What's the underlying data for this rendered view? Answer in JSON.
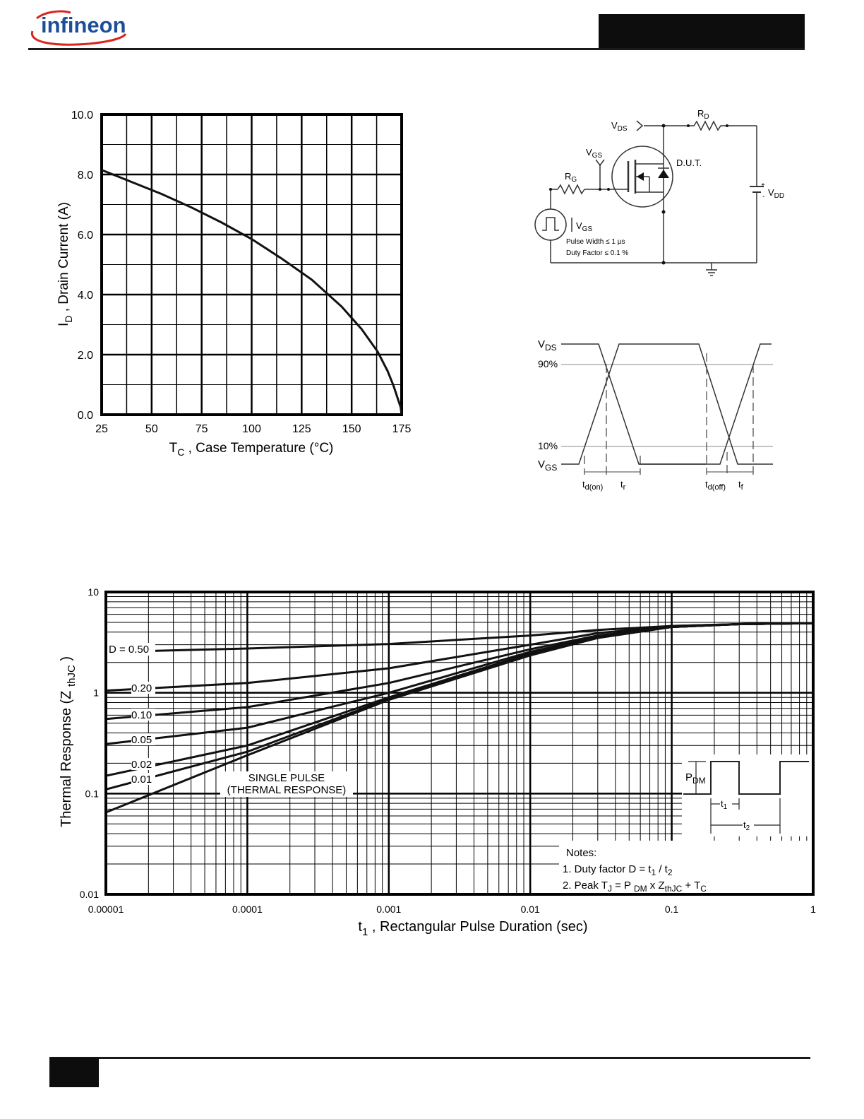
{
  "header": {
    "brand": "infineon"
  },
  "colors": {
    "brand": "#1d4e9a",
    "swoosh": "#d8261f",
    "ink": "#111111"
  },
  "chart_data": [
    {
      "type": "line",
      "xlabel_main": "T",
      "xlabel_sub": "C",
      "xlabel_rest": " , Case Temperature  (",
      "xlabel_unit": "°C)",
      "ylabel_main": "I",
      "ylabel_sub": "D",
      "ylabel_rest": " , Drain Current (A)",
      "xlim": [
        25,
        175
      ],
      "ylim": [
        0,
        10
      ],
      "x_ticks": [
        25,
        50,
        75,
        100,
        125,
        150,
        175
      ],
      "x_tick_labels": [
        "25",
        "50",
        "75",
        "100",
        "125",
        "150",
        "175"
      ],
      "y_ticks": [
        0,
        2,
        4,
        6,
        8,
        10
      ],
      "y_tick_labels": [
        "0.0",
        "2.0",
        "4.0",
        "6.0",
        "8.0",
        "10.0"
      ],
      "grid": true,
      "series": [
        {
          "x": [
            25,
            40,
            55,
            70,
            85,
            100,
            115,
            130,
            145,
            155,
            163,
            168,
            171,
            173,
            174.5,
            175
          ],
          "y": [
            8.15,
            7.75,
            7.35,
            6.9,
            6.4,
            5.85,
            5.2,
            4.5,
            3.6,
            2.85,
            2.1,
            1.45,
            0.95,
            0.55,
            0.25,
            0.0
          ]
        }
      ]
    },
    {
      "type": "line",
      "x_scale": "log",
      "y_scale": "log",
      "xlabel_main": "t",
      "xlabel_sub": "1",
      "xlabel_rest": " , Rectangular Pulse Duration (sec)",
      "ylabel_main": "Thermal Response (Z ",
      "ylabel_sub": "thJC",
      "ylabel_rest": " )",
      "xlim": [
        1e-05,
        1
      ],
      "ylim": [
        0.01,
        10
      ],
      "x_tick_labels": [
        "0.00001",
        "0.0001",
        "0.001",
        "0.01",
        "0.1",
        "1"
      ],
      "y_tick_labels": [
        "0.01",
        "0.1",
        "1",
        "10"
      ],
      "grid": true,
      "series": [
        {
          "name": "D = 0.50",
          "x": [
            2e-05,
            0.0001,
            0.001,
            0.01,
            0.03,
            0.1,
            0.3,
            1
          ],
          "y": [
            2.6,
            2.75,
            3.05,
            3.7,
            4.2,
            4.6,
            4.8,
            4.9
          ]
        },
        {
          "name": "0.20",
          "x": [
            1e-05,
            0.0001,
            0.001,
            0.01,
            0.03,
            0.1,
            0.3,
            1
          ],
          "y": [
            1.05,
            1.25,
            1.75,
            3.0,
            3.9,
            4.6,
            4.8,
            4.9
          ]
        },
        {
          "name": "0.10",
          "x": [
            1e-05,
            0.0001,
            0.001,
            0.01,
            0.03,
            0.1,
            0.3,
            1
          ],
          "y": [
            0.55,
            0.72,
            1.25,
            2.7,
            3.7,
            4.5,
            4.8,
            4.9
          ]
        },
        {
          "name": "0.05",
          "x": [
            1e-05,
            0.0001,
            0.001,
            0.01,
            0.03,
            0.1,
            0.3,
            1
          ],
          "y": [
            0.31,
            0.45,
            1.0,
            2.55,
            3.6,
            4.5,
            4.8,
            4.9
          ]
        },
        {
          "name": "0.02",
          "x": [
            1e-05,
            0.0001,
            0.001,
            0.01,
            0.03,
            0.1,
            0.3,
            1
          ],
          "y": [
            0.15,
            0.3,
            0.9,
            2.45,
            3.55,
            4.5,
            4.8,
            4.9
          ]
        },
        {
          "name": "0.01",
          "x": [
            1e-05,
            0.0001,
            0.001,
            0.01,
            0.03,
            0.1,
            0.3,
            1
          ],
          "y": [
            0.11,
            0.26,
            0.87,
            2.4,
            3.5,
            4.5,
            4.8,
            4.9
          ]
        },
        {
          "name": "SINGLE PULSE (THERMAL RESPONSE)",
          "x": [
            1e-05,
            0.0001,
            0.001,
            0.01,
            0.03,
            0.1,
            0.3,
            1
          ],
          "y": [
            0.065,
            0.24,
            0.85,
            2.35,
            3.5,
            4.5,
            4.8,
            4.9
          ]
        }
      ],
      "annotations": {
        "single_pulse_line1": "SINGLE PULSE",
        "single_pulse_line2": "(THERMAL RESPONSE)",
        "notes_title": "Notes:",
        "note1_text": "1. Duty factor D =  t",
        "note1_sub1": "1",
        "note1_mid": " / t",
        "note1_sub2": "2",
        "note2_text": "2. Peak T",
        "note2_subJ": "J",
        "note2_eq": " = P ",
        "note2_subDM": "DM",
        "note2_x": " x  Z",
        "note2_subthJC": "thJC",
        "note2_plus": "  + T",
        "note2_subC": "C",
        "pdm_main": "P",
        "pdm_sub": "DM",
        "t1_main": "t",
        "t1_sub": "1",
        "t2_main": "t",
        "t2_sub": "2"
      }
    }
  ],
  "test_circuit": {
    "vds_main": "V",
    "vds_sub": "DS",
    "vgs_main": "V",
    "vgs_sub": "GS",
    "rd_main": "R",
    "rd_sub": "D",
    "rg_main": "R",
    "rg_sub": "G",
    "dut_label": "D.U.T.",
    "vdd_main": "V",
    "vdd_sub": "DD",
    "plus": "+",
    "minus": "-",
    "pulse_width": "Pulse Width ≤ 1 µs",
    "duty_factor": "Duty Factor ≤ 0.1 %"
  },
  "switching_waveform": {
    "vds_main": "V",
    "vds_sub": "DS",
    "vgs_main": "V",
    "vgs_sub": "GS",
    "pct90": "90%",
    "pct10": "10%",
    "tdon_main": "t",
    "tdon_sub": "d(on)",
    "tr_main": "t",
    "tr_sub": "r",
    "tdoff_main": "t",
    "tdoff_sub": "d(off)",
    "tf_main": "t",
    "tf_sub": "f"
  }
}
